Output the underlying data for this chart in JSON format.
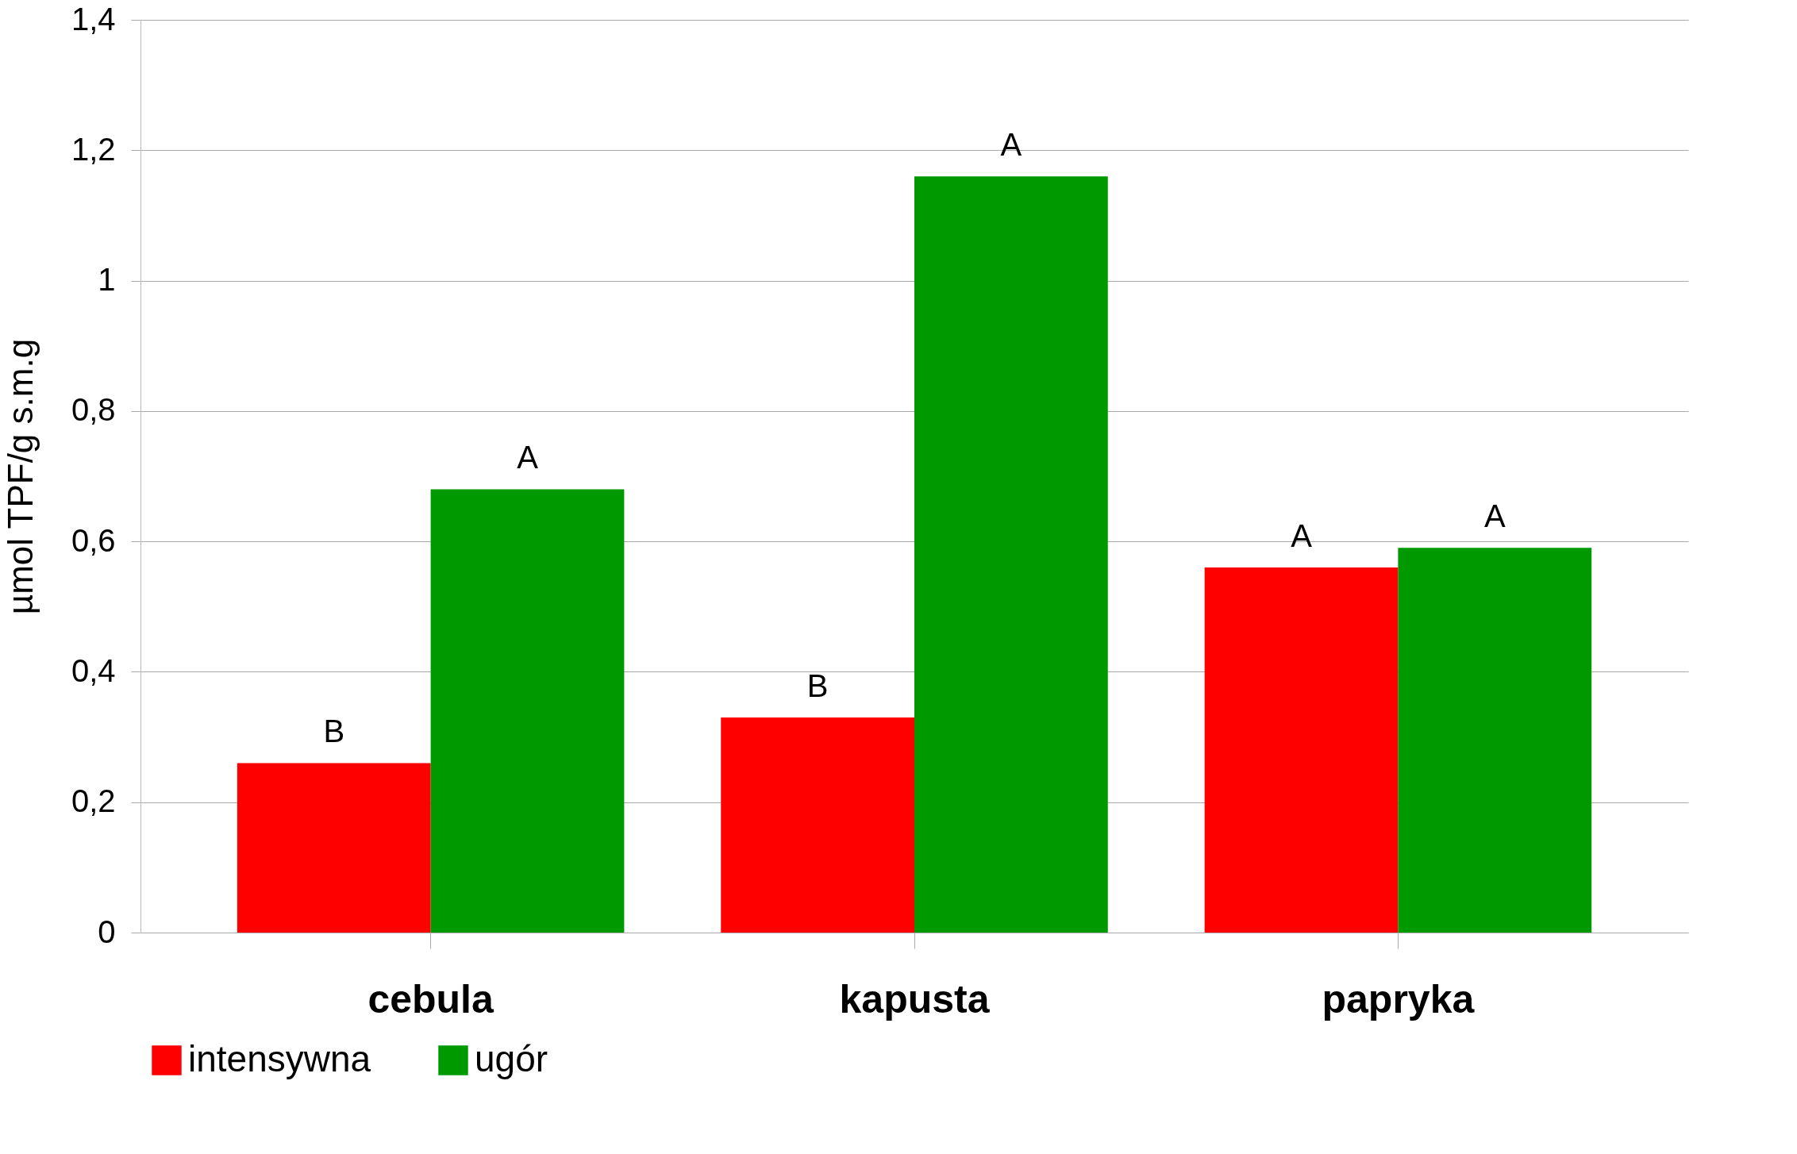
{
  "chart_data": {
    "type": "bar",
    "ylabel": "µmol TPF/g s.m.g",
    "categories": [
      "cebula",
      "kapusta",
      "papryka"
    ],
    "series": [
      {
        "name": "intensywna",
        "color": "#ff0000",
        "values": [
          0.26,
          0.33,
          0.56
        ],
        "value_labels": [
          "B",
          "B",
          "A"
        ]
      },
      {
        "name": "ugór",
        "color": "#009900",
        "values": [
          0.68,
          1.16,
          0.59
        ],
        "value_labels": [
          "A",
          "A",
          "A"
        ]
      }
    ],
    "ylim": [
      0,
      1.4
    ],
    "yticks": [
      {
        "value": 0,
        "label": "0"
      },
      {
        "value": 0.2,
        "label": "0,2"
      },
      {
        "value": 0.4,
        "label": "0,4"
      },
      {
        "value": 0.6,
        "label": "0,6"
      },
      {
        "value": 0.8,
        "label": "0,8"
      },
      {
        "value": 1,
        "label": "1"
      },
      {
        "value": 1.2,
        "label": "1,2"
      },
      {
        "value": 1.4,
        "label": "1,4"
      }
    ],
    "grid": "y",
    "legend": "bottom"
  }
}
